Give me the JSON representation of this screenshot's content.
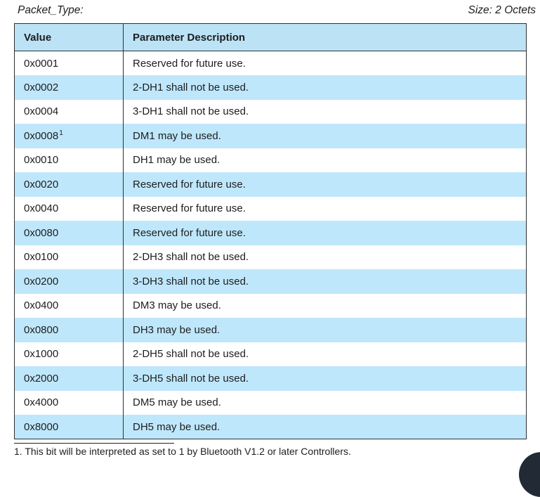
{
  "caption": {
    "field": "Packet_Type:",
    "size": "Size: 2 Octets"
  },
  "table": {
    "columns": [
      "Value",
      "Parameter Description"
    ],
    "rows": [
      {
        "value": "0x0001",
        "sup": "",
        "description": "Reserved for future use."
      },
      {
        "value": "0x0002",
        "sup": "",
        "description": "2-DH1 shall not be used."
      },
      {
        "value": "0x0004",
        "sup": "",
        "description": "3-DH1 shall not be used."
      },
      {
        "value": "0x0008",
        "sup": "1",
        "description": "DM1 may be used."
      },
      {
        "value": "0x0010",
        "sup": "",
        "description": "DH1 may be used."
      },
      {
        "value": "0x0020",
        "sup": "",
        "description": "Reserved for future use."
      },
      {
        "value": "0x0040",
        "sup": "",
        "description": "Reserved for future use."
      },
      {
        "value": "0x0080",
        "sup": "",
        "description": "Reserved for future use."
      },
      {
        "value": "0x0100",
        "sup": "",
        "description": "2-DH3 shall not be used."
      },
      {
        "value": "0x0200",
        "sup": "",
        "description": "3-DH3 shall not be used."
      },
      {
        "value": "0x0400",
        "sup": "",
        "description": "DM3 may be used."
      },
      {
        "value": "0x0800",
        "sup": "",
        "description": "DH3 may be used."
      },
      {
        "value": "0x1000",
        "sup": "",
        "description": "2-DH5 shall not be used."
      },
      {
        "value": "0x2000",
        "sup": "",
        "description": "3-DH5 shall not be used."
      },
      {
        "value": "0x4000",
        "sup": "",
        "description": "DM5 may be used."
      },
      {
        "value": "0x8000",
        "sup": "",
        "description": "DH5 may be used."
      }
    ]
  },
  "footnote": "1. This bit will be interpreted as set to 1 by Bluetooth V1.2 or later Controllers.",
  "colors": {
    "header_bg": "#bce3f5",
    "row_alt_bg": "#bfe7fb",
    "border": "#2e3033",
    "text": "#1d1d1f",
    "corner_widget": "#222a36"
  }
}
